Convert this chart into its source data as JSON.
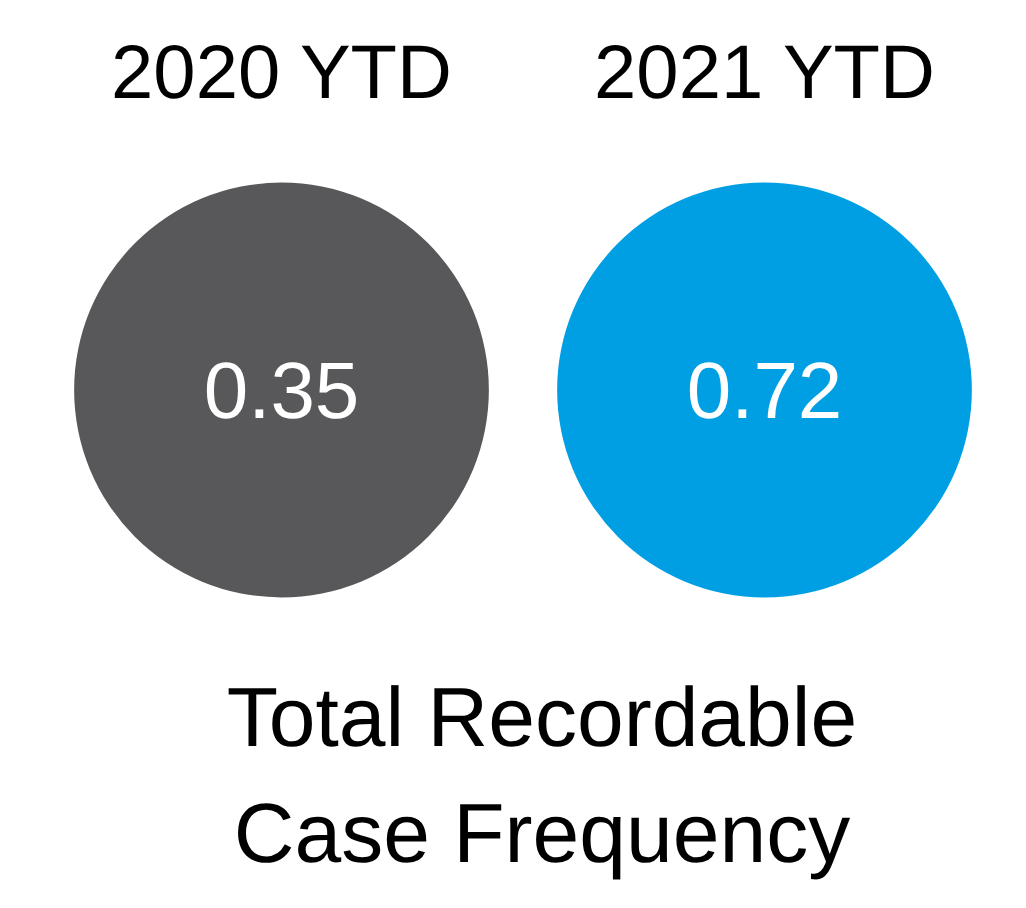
{
  "chart_data": {
    "type": "other",
    "title": "Total Recordable Case Frequency",
    "categories": [
      "2020 YTD",
      "2021 YTD"
    ],
    "values": [
      0.35,
      0.72
    ],
    "colors": [
      "#58585a",
      "#009fe3"
    ],
    "data_labels": true
  }
}
